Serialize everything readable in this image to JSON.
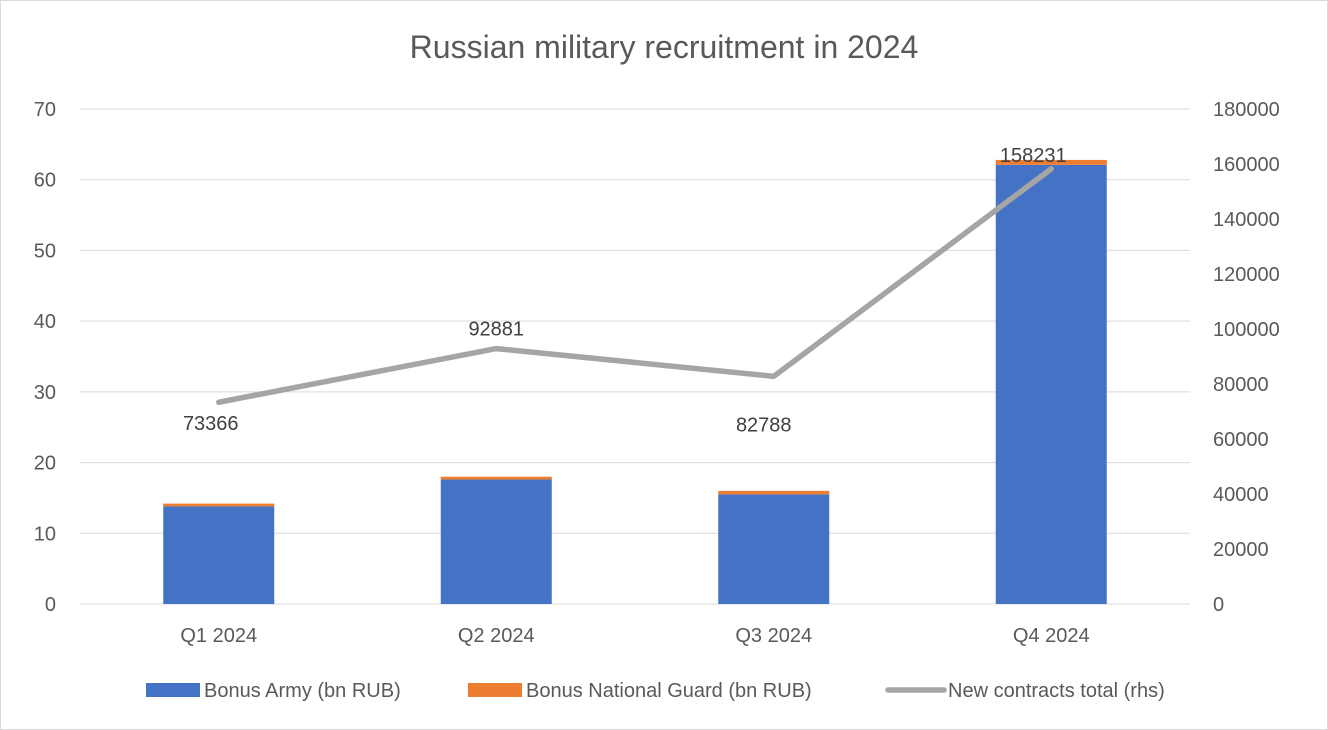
{
  "chart_data": {
    "type": "bar",
    "title": "Russian military recruitment in 2024",
    "categories": [
      "Q1 2024",
      "Q2 2024",
      "Q3 2024",
      "Q4 2024"
    ],
    "series": [
      {
        "name": "Bonus Army (bn RUB)",
        "type": "bar",
        "axis": "left",
        "stacked": true,
        "color": "#4472c4",
        "values": [
          13.8,
          17.6,
          15.5,
          62.1
        ]
      },
      {
        "name": "Bonus National Guard (bn RUB)",
        "type": "bar",
        "axis": "left",
        "stacked": true,
        "color": "#ed7d31",
        "values": [
          0.4,
          0.4,
          0.5,
          0.7
        ]
      },
      {
        "name": "New contracts total (rhs)",
        "type": "line",
        "axis": "right",
        "color": "#a5a5a5",
        "values": [
          73366,
          92881,
          82788,
          158231
        ],
        "data_labels": [
          "73366",
          "92881",
          "82788",
          "158231"
        ]
      }
    ],
    "ylim_left": [
      0,
      70
    ],
    "yticks_left": [
      0,
      10,
      20,
      30,
      40,
      50,
      60,
      70
    ],
    "ylim_right": [
      0,
      180000
    ],
    "yticks_right": [
      0,
      20000,
      40000,
      60000,
      80000,
      100000,
      120000,
      140000,
      160000,
      180000
    ],
    "grid": true,
    "legend_position": "bottom"
  }
}
